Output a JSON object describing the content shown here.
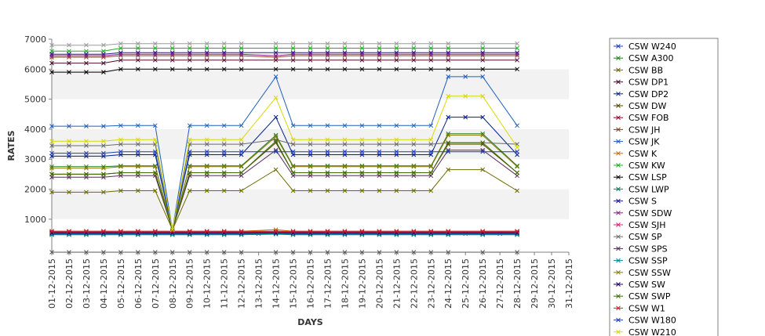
{
  "chart_data": {
    "type": "line",
    "xlabel": "DAYS",
    "ylabel": "RATES",
    "ylim": [
      -100,
      7000
    ],
    "yticks": [
      1000,
      2000,
      3000,
      4000,
      5000,
      6000,
      7000
    ],
    "grid": "alternating horizontal bands",
    "legend_position": "right",
    "x": [
      "01-12-2015",
      "02-12-2015",
      "03-12-2015",
      "04-12-2015",
      "05-12-2015",
      "06-12-2015",
      "07-12-2015",
      "08-12-2015",
      "09-12-2015",
      "10-12-2015",
      "11-12-2015",
      "12-12-2015",
      "13-12-2015",
      "14-12-2015",
      "15-12-2015",
      "16-12-2015",
      "17-12-2015",
      "18-12-2015",
      "19-12-2015",
      "20-12-2015",
      "21-12-2015",
      "22-12-2015",
      "23-12-2015",
      "24-12-2015",
      "25-12-2015",
      "26-12-2015",
      "27-12-2015",
      "28-12-2015",
      "29-12-2015",
      "30-12-2015",
      "31-12-2015"
    ],
    "series": [
      {
        "name": "CSW  W240",
        "color": "#1f3fbf",
        "values": [
          520,
          520,
          520,
          520,
          520,
          520,
          520,
          520,
          520,
          520,
          520,
          520,
          520,
          520,
          520,
          520,
          520,
          520,
          520,
          520,
          520,
          520,
          520,
          520,
          520,
          520,
          520,
          520,
          null,
          null,
          null
        ]
      },
      {
        "name": "CSW A300",
        "color": "#1e7a1e",
        "values": [
          2750,
          2750,
          2750,
          2750,
          2780,
          2780,
          2780,
          650,
          2780,
          2780,
          2780,
          2780,
          null,
          3800,
          2780,
          2780,
          2780,
          2780,
          2780,
          2780,
          2780,
          2780,
          2780,
          3850,
          null,
          3850,
          null,
          2780,
          null,
          null,
          null
        ]
      },
      {
        "name": "CSW BB",
        "color": "#6b6b00",
        "values": [
          1900,
          1900,
          1900,
          1900,
          1950,
          1950,
          1950,
          650,
          1950,
          1950,
          1950,
          1950,
          null,
          2650,
          1950,
          1950,
          1950,
          1950,
          1950,
          1950,
          1950,
          1950,
          1950,
          2650,
          null,
          2650,
          null,
          1950,
          null,
          null,
          null
        ]
      },
      {
        "name": "CSW DP1",
        "color": "#4a0f2f",
        "values": [
          6200,
          6200,
          6200,
          6200,
          6300,
          6300,
          6300,
          6300,
          6300,
          6300,
          6300,
          6300,
          null,
          6300,
          6300,
          6300,
          6300,
          6300,
          6300,
          6300,
          6300,
          6300,
          6300,
          6300,
          null,
          6300,
          null,
          6300,
          null,
          null,
          null
        ]
      },
      {
        "name": "CSW DP2",
        "color": "#00208a",
        "values": [
          3100,
          3100,
          3100,
          3100,
          3150,
          3150,
          3150,
          650,
          3150,
          3150,
          3150,
          3150,
          null,
          4400,
          3150,
          3150,
          3150,
          3150,
          3150,
          3150,
          3150,
          3150,
          3150,
          4400,
          4400,
          4400,
          null,
          3150,
          null,
          null,
          null
        ]
      },
      {
        "name": "CSW DW",
        "color": "#5a4a00",
        "values": [
          2500,
          2500,
          2500,
          2500,
          2550,
          2550,
          2550,
          650,
          2550,
          2550,
          2550,
          2550,
          null,
          3550,
          2550,
          2550,
          2550,
          2550,
          2550,
          2550,
          2550,
          2550,
          2550,
          3500,
          null,
          3500,
          null,
          2550,
          null,
          null,
          null
        ]
      },
      {
        "name": "CSW FOB",
        "color": "#8a001f",
        "values": [
          560,
          560,
          560,
          560,
          560,
          560,
          560,
          560,
          560,
          560,
          560,
          560,
          null,
          560,
          560,
          560,
          560,
          560,
          560,
          560,
          560,
          560,
          560,
          560,
          null,
          560,
          null,
          560,
          null,
          null,
          null
        ]
      },
      {
        "name": "CSW JH",
        "color": "#8a3f1f",
        "values": [
          6400,
          6400,
          6400,
          6400,
          6450,
          6450,
          6450,
          6450,
          6450,
          6450,
          6450,
          6450,
          null,
          6400,
          6450,
          6450,
          6450,
          6450,
          6450,
          6450,
          6450,
          6450,
          6450,
          6450,
          null,
          6450,
          null,
          6450,
          null,
          null,
          null
        ]
      },
      {
        "name": "CSW JK",
        "color": "#1f5fbf",
        "values": [
          4100,
          4100,
          4100,
          4100,
          4120,
          4120,
          4120,
          650,
          4120,
          4120,
          4120,
          4120,
          null,
          5750,
          4120,
          4120,
          4120,
          4120,
          4120,
          4120,
          4120,
          4120,
          4120,
          5750,
          5750,
          5750,
          null,
          4120,
          null,
          null,
          null
        ]
      },
      {
        "name": "CSW K",
        "color": "#d06a00",
        "values": [
          600,
          600,
          600,
          600,
          600,
          600,
          600,
          600,
          600,
          600,
          600,
          600,
          null,
          650,
          600,
          600,
          600,
          600,
          600,
          600,
          600,
          600,
          600,
          600,
          null,
          600,
          null,
          600,
          null,
          null,
          null
        ]
      },
      {
        "name": "CSW KW",
        "color": "#22b022",
        "values": [
          6600,
          6600,
          6600,
          6600,
          6700,
          6700,
          6700,
          6700,
          6700,
          6700,
          6700,
          6700,
          null,
          6700,
          6700,
          6700,
          6700,
          6700,
          6700,
          6700,
          6700,
          6700,
          6700,
          6700,
          null,
          6700,
          null,
          6700,
          null,
          null,
          null
        ]
      },
      {
        "name": "CSW LSP",
        "color": "#000000",
        "values": [
          5900,
          5900,
          5900,
          5900,
          6000,
          6000,
          6000,
          6000,
          6000,
          6000,
          6000,
          6000,
          null,
          6000,
          6000,
          6000,
          6000,
          6000,
          6000,
          6000,
          6000,
          6000,
          6000,
          6000,
          null,
          6000,
          null,
          6000,
          null,
          null,
          null
        ]
      },
      {
        "name": "CSW LWP",
        "color": "#00805a",
        "values": [
          480,
          480,
          480,
          480,
          480,
          480,
          480,
          480,
          480,
          480,
          480,
          480,
          null,
          500,
          480,
          480,
          480,
          480,
          480,
          480,
          480,
          480,
          480,
          480,
          null,
          480,
          null,
          480,
          null,
          null,
          null
        ]
      },
      {
        "name": "CSW S",
        "color": "#1a1a8a",
        "values": [
          6500,
          6500,
          6500,
          6500,
          6550,
          6550,
          6550,
          6550,
          6550,
          6550,
          6550,
          6550,
          null,
          6550,
          6550,
          6550,
          6550,
          6550,
          6550,
          6550,
          6550,
          6550,
          6550,
          6550,
          null,
          6550,
          null,
          6550,
          null,
          null,
          null
        ]
      },
      {
        "name": "CSW SDW",
        "color": "#8a1f8a",
        "values": [
          6450,
          6450,
          6450,
          6450,
          6500,
          6500,
          6500,
          6500,
          6500,
          6500,
          6500,
          6500,
          null,
          6450,
          6500,
          6500,
          6500,
          6500,
          6500,
          6500,
          6500,
          6500,
          6500,
          6500,
          null,
          6500,
          null,
          6500,
          null,
          null,
          null
        ]
      },
      {
        "name": "CSW SJH",
        "color": "#e0207a",
        "values": [
          580,
          580,
          580,
          580,
          580,
          580,
          580,
          580,
          580,
          580,
          580,
          580,
          null,
          580,
          580,
          580,
          580,
          580,
          580,
          580,
          580,
          580,
          580,
          580,
          null,
          580,
          null,
          580,
          null,
          null,
          null
        ]
      },
      {
        "name": "CSW SP",
        "color": "#6a6a6a",
        "values": [
          3450,
          3450,
          3450,
          3450,
          3500,
          3500,
          3500,
          650,
          3500,
          3500,
          3500,
          3500,
          null,
          3650,
          3500,
          3500,
          3500,
          3500,
          3500,
          3500,
          3500,
          3500,
          3500,
          3550,
          null,
          3550,
          null,
          3500,
          null,
          null,
          null
        ]
      },
      {
        "name": "CSW SPS",
        "color": "#5a2a5a",
        "values": [
          2400,
          2400,
          2400,
          2400,
          2450,
          2450,
          2450,
          650,
          2450,
          2450,
          2450,
          2450,
          null,
          3300,
          2450,
          2450,
          2450,
          2450,
          2450,
          2450,
          2450,
          2450,
          2450,
          3300,
          null,
          3300,
          null,
          2450,
          null,
          null,
          null
        ]
      },
      {
        "name": "CSW SSP",
        "color": "#008aa0",
        "values": [
          500,
          500,
          500,
          500,
          500,
          500,
          500,
          500,
          500,
          500,
          500,
          500,
          null,
          520,
          500,
          500,
          500,
          500,
          500,
          500,
          500,
          500,
          500,
          500,
          null,
          500,
          null,
          500,
          null,
          null,
          null
        ]
      },
      {
        "name": "CSW SSW",
        "color": "#8a7a00",
        "values": [
          2700,
          2700,
          2700,
          2700,
          2750,
          2750,
          2750,
          650,
          2750,
          2750,
          2750,
          2750,
          null,
          3750,
          2750,
          2750,
          2750,
          2750,
          2750,
          2750,
          2750,
          2750,
          2750,
          3800,
          null,
          3800,
          null,
          2750,
          null,
          null,
          null
        ]
      },
      {
        "name": "CSW SW",
        "color": "#2a006a",
        "values": [
          540,
          540,
          540,
          540,
          540,
          540,
          540,
          540,
          540,
          540,
          540,
          540,
          null,
          540,
          540,
          540,
          540,
          540,
          540,
          540,
          540,
          540,
          540,
          540,
          null,
          540,
          null,
          540,
          null,
          null,
          null
        ]
      },
      {
        "name": "CSW SWP",
        "color": "#3a6a00",
        "values": [
          2500,
          2500,
          2500,
          2500,
          2550,
          2550,
          2550,
          650,
          2550,
          2550,
          2550,
          2550,
          null,
          3600,
          2550,
          2550,
          2550,
          2550,
          2550,
          2550,
          2550,
          2550,
          2550,
          3550,
          null,
          3550,
          null,
          2550,
          null,
          null,
          null
        ]
      },
      {
        "name": "CSW W1",
        "color": "#d01f1f",
        "values": [
          600,
          600,
          600,
          600,
          600,
          600,
          600,
          600,
          600,
          600,
          600,
          600,
          null,
          600,
          600,
          600,
          600,
          600,
          600,
          600,
          600,
          600,
          600,
          600,
          null,
          600,
          null,
          600,
          null,
          null,
          null
        ]
      },
      {
        "name": "CSW W180",
        "color": "#1f3faf",
        "values": [
          3200,
          3200,
          3200,
          3200,
          3250,
          3250,
          3250,
          650,
          3250,
          3250,
          3250,
          3250,
          null,
          3250,
          3250,
          3250,
          3250,
          3250,
          3250,
          3250,
          3250,
          3250,
          3250,
          3250,
          null,
          3250,
          null,
          3250,
          null,
          null,
          null
        ]
      },
      {
        "name": "CSW W210",
        "color": "#d8d800",
        "values": [
          3600,
          3600,
          3600,
          3600,
          3650,
          3650,
          3650,
          650,
          3650,
          3650,
          3650,
          3650,
          null,
          5050,
          3650,
          3650,
          3650,
          3650,
          3650,
          3650,
          3650,
          3650,
          3650,
          5100,
          5100,
          5100,
          null,
          3400,
          null,
          null,
          null
        ]
      },
      {
        "name": "",
        "color": "#5a5a5a",
        "values": [
          -100,
          -100,
          -100,
          -100,
          -100,
          -100,
          -100,
          -100,
          -100,
          -100,
          -100,
          -100,
          null,
          -100,
          -100,
          -100,
          -100,
          -100,
          -100,
          -100,
          -100,
          -100,
          -100,
          -100,
          null,
          -100,
          null,
          -100,
          null,
          null,
          null
        ]
      },
      {
        "name": "",
        "color": "#9a9a9a",
        "values": [
          6800,
          6800,
          6800,
          6800,
          6850,
          6850,
          6850,
          6850,
          6850,
          6850,
          6850,
          6850,
          null,
          6850,
          6850,
          6850,
          6850,
          6850,
          6850,
          6850,
          6850,
          6850,
          6850,
          6850,
          null,
          6850,
          null,
          6850,
          null,
          null,
          null
        ]
      }
    ]
  }
}
